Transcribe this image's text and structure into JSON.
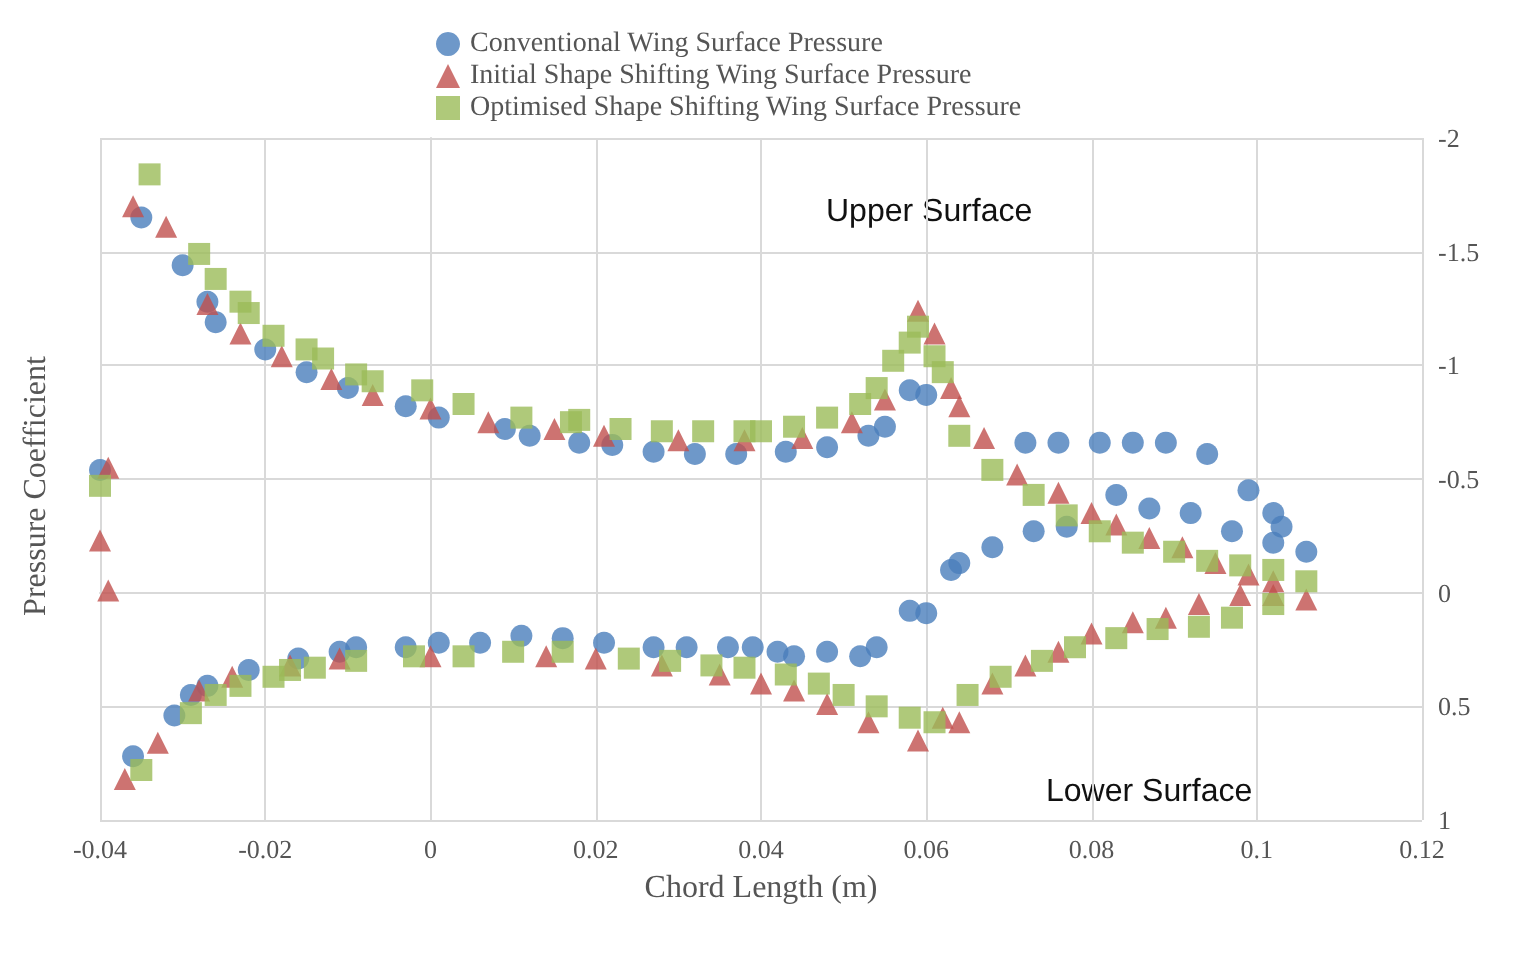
{
  "chart_data": {
    "type": "scatter",
    "xlabel": "Chord Length (m)",
    "ylabel": "Pressure Coefficient",
    "xlim": [
      -0.04,
      0.12
    ],
    "xticks": [
      -0.04,
      -0.02,
      0,
      0.02,
      0.04,
      0.06,
      0.08,
      0.1,
      0.12
    ],
    "ylim": [
      1,
      -2
    ],
    "yticks": [
      -2,
      -1.5,
      -1,
      -0.5,
      0,
      0.5,
      1
    ],
    "grid": true,
    "legend": "top",
    "annotations": [
      "Upper Surface",
      "Lower Surface"
    ],
    "series": [
      {
        "name": "Conventional Wing Surface Pressure",
        "color": "#4a7ebb",
        "marker": "circle",
        "x": [
          -0.04,
          -0.035,
          -0.03,
          -0.027,
          -0.026,
          -0.02,
          -0.015,
          -0.01,
          -0.003,
          0.001,
          0.009,
          0.012,
          0.018,
          0.022,
          0.027,
          0.032,
          0.037,
          0.043,
          0.048,
          0.053,
          0.055,
          0.058,
          0.06,
          0.072,
          0.076,
          0.081,
          0.085,
          0.089,
          0.094,
          0.099,
          0.102,
          0.103,
          0.106,
          -0.036,
          -0.031,
          -0.029,
          -0.027,
          -0.022,
          -0.016,
          -0.011,
          -0.009,
          -0.003,
          0.001,
          0.006,
          0.011,
          0.016,
          0.021,
          0.027,
          0.031,
          0.036,
          0.039,
          0.042,
          0.044,
          0.048,
          0.052,
          0.054,
          0.058,
          0.06,
          0.063,
          0.064,
          0.068,
          0.073,
          0.077,
          0.083,
          0.087,
          0.092,
          0.097,
          0.102
        ],
        "values": [
          -0.54,
          -1.65,
          -1.44,
          -1.28,
          -1.19,
          -1.07,
          -0.97,
          -0.9,
          -0.82,
          -0.77,
          -0.72,
          -0.69,
          -0.66,
          -0.65,
          -0.62,
          -0.61,
          -0.61,
          -0.62,
          -0.64,
          -0.69,
          -0.73,
          -0.89,
          -0.87,
          -0.66,
          -0.66,
          -0.66,
          -0.66,
          -0.66,
          -0.61,
          -0.45,
          -0.35,
          -0.29,
          -0.18,
          0.72,
          0.54,
          0.45,
          0.41,
          0.34,
          0.29,
          0.26,
          0.24,
          0.24,
          0.22,
          0.22,
          0.19,
          0.2,
          0.22,
          0.24,
          0.24,
          0.24,
          0.24,
          0.26,
          0.28,
          0.26,
          0.28,
          0.24,
          0.08,
          0.09,
          -0.1,
          -0.13,
          -0.2,
          -0.27,
          -0.29,
          -0.43,
          -0.37,
          -0.35,
          -0.27,
          -0.22
        ]
      },
      {
        "name": "Initial Shape Shifting Wing Surface Pressure",
        "color": "#c0504d",
        "marker": "triangle",
        "x": [
          -0.039,
          -0.04,
          -0.039,
          -0.036,
          -0.032,
          -0.027,
          -0.023,
          -0.018,
          -0.012,
          -0.007,
          0,
          0.007,
          0.015,
          0.021,
          0.03,
          0.038,
          0.045,
          0.051,
          0.055,
          0.059,
          0.061,
          0.063,
          0.064,
          0.067,
          0.071,
          0.076,
          0.08,
          0.083,
          0.087,
          0.091,
          0.095,
          0.099,
          0.102,
          0.106,
          -0.037,
          -0.033,
          -0.028,
          -0.024,
          -0.017,
          -0.011,
          0,
          0.014,
          0.02,
          0.028,
          0.035,
          0.04,
          0.044,
          0.048,
          0.053,
          0.059,
          0.062,
          0.064,
          0.068,
          0.072,
          0.076,
          0.08,
          0.085,
          0.089,
          0.093,
          0.098,
          0.102
        ],
        "values": [
          -0.55,
          -0.23,
          -0.01,
          -1.7,
          -1.61,
          -1.27,
          -1.14,
          -1.04,
          -0.94,
          -0.87,
          -0.81,
          -0.75,
          -0.72,
          -0.69,
          -0.67,
          -0.67,
          -0.68,
          -0.75,
          -0.85,
          -1.24,
          -1.14,
          -0.9,
          -0.82,
          -0.68,
          -0.52,
          -0.44,
          -0.35,
          -0.3,
          -0.24,
          -0.2,
          -0.13,
          -0.08,
          -0.05,
          0.03,
          0.82,
          0.66,
          0.43,
          0.37,
          0.32,
          0.29,
          0.28,
          0.28,
          0.29,
          0.32,
          0.36,
          0.4,
          0.43,
          0.49,
          0.57,
          0.65,
          0.55,
          0.57,
          0.4,
          0.32,
          0.26,
          0.18,
          0.13,
          0.11,
          0.05,
          0.01,
          0.01
        ]
      },
      {
        "name": "Optimised Shape Shifting Wing Surface Pressure",
        "color": "#9bbb59",
        "marker": "square",
        "x": [
          -0.04,
          -0.034,
          -0.028,
          -0.026,
          -0.023,
          -0.022,
          -0.019,
          -0.015,
          -0.013,
          -0.009,
          -0.007,
          -0.001,
          0.004,
          0.011,
          0.017,
          0.018,
          0.023,
          0.028,
          0.033,
          0.038,
          0.04,
          0.044,
          0.048,
          0.052,
          0.054,
          0.056,
          0.058,
          0.059,
          0.061,
          0.062,
          0.064,
          0.068,
          0.073,
          0.077,
          0.081,
          0.085,
          0.09,
          0.094,
          0.098,
          0.102,
          0.106,
          -0.035,
          -0.029,
          -0.026,
          -0.023,
          -0.019,
          -0.017,
          -0.014,
          -0.009,
          -0.002,
          0.004,
          0.01,
          0.016,
          0.024,
          0.029,
          0.034,
          0.038,
          0.043,
          0.047,
          0.05,
          0.054,
          0.058,
          0.061,
          0.065,
          0.069,
          0.074,
          0.078,
          0.083,
          0.088,
          0.093,
          0.097,
          0.102
        ],
        "values": [
          -0.47,
          -1.84,
          -1.49,
          -1.38,
          -1.28,
          -1.23,
          -1.13,
          -1.07,
          -1.03,
          -0.96,
          -0.93,
          -0.89,
          -0.83,
          -0.77,
          -0.75,
          -0.76,
          -0.72,
          -0.71,
          -0.71,
          -0.71,
          -0.71,
          -0.73,
          -0.77,
          -0.83,
          -0.9,
          -1.02,
          -1.1,
          -1.17,
          -1.04,
          -0.97,
          -0.69,
          -0.54,
          -0.43,
          -0.34,
          -0.27,
          -0.22,
          -0.18,
          -0.14,
          -0.12,
          -0.1,
          -0.05,
          0.78,
          0.53,
          0.45,
          0.41,
          0.37,
          0.34,
          0.33,
          0.3,
          0.28,
          0.28,
          0.26,
          0.26,
          0.29,
          0.3,
          0.32,
          0.33,
          0.36,
          0.4,
          0.45,
          0.5,
          0.55,
          0.57,
          0.45,
          0.37,
          0.3,
          0.24,
          0.2,
          0.16,
          0.15,
          0.11,
          0.05
        ]
      }
    ]
  }
}
